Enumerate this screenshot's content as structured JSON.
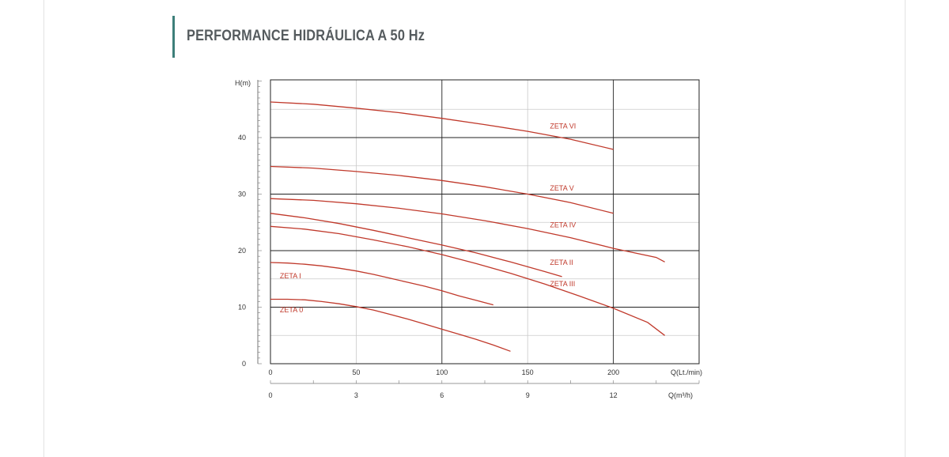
{
  "page": {
    "heading": "PERFORMANCE HIDRÁULICA A 50 Hz",
    "accent_color": "#3d7f7a"
  },
  "chart_data": {
    "type": "line",
    "title": "PERFORMANCE HIDRÁULICA A 50 Hz",
    "ylabel": "H(m)",
    "xlabel": "Q(Lt./min)",
    "x2label": "Q(m³/h)",
    "xlim": [
      0,
      250
    ],
    "ylim": [
      0,
      50
    ],
    "x_ticks": [
      0,
      50,
      100,
      150,
      200
    ],
    "x2_ticks": [
      0,
      3,
      6,
      9,
      12
    ],
    "y_ticks": [
      0,
      10,
      20,
      30,
      40
    ],
    "grid": true,
    "curve_color": "#c0392b",
    "series": [
      {
        "name": "ZETA 0",
        "x": [
          0,
          10,
          20,
          30,
          40,
          50,
          60,
          70,
          80,
          90,
          100,
          110,
          120,
          130,
          140
        ],
        "y": [
          11.4,
          11.4,
          11.3,
          11.0,
          10.6,
          10.1,
          9.5,
          8.7,
          7.9,
          7.0,
          6.1,
          5.2,
          4.3,
          3.3,
          2.2
        ]
      },
      {
        "name": "ZETA I",
        "x": [
          0,
          10,
          20,
          30,
          40,
          50,
          60,
          70,
          80,
          90,
          100,
          110,
          120,
          130
        ],
        "y": [
          17.9,
          17.8,
          17.6,
          17.3,
          16.9,
          16.4,
          15.8,
          15.1,
          14.4,
          13.7,
          12.9,
          12.0,
          11.2,
          10.4
        ]
      },
      {
        "name": "ZETA II",
        "x": [
          0,
          20,
          40,
          60,
          80,
          100,
          120,
          140,
          160,
          170
        ],
        "y": [
          26.6,
          25.8,
          24.8,
          23.6,
          22.3,
          21.0,
          19.6,
          18.0,
          16.3,
          15.4
        ]
      },
      {
        "name": "ZETA III",
        "x": [
          0,
          20,
          40,
          60,
          80,
          100,
          120,
          140,
          160,
          180,
          200,
          220,
          230
        ],
        "y": [
          24.3,
          23.8,
          23.0,
          21.9,
          20.7,
          19.3,
          17.7,
          16.0,
          14.1,
          12.0,
          9.8,
          7.3,
          5.0
        ]
      },
      {
        "name": "ZETA IV",
        "x": [
          0,
          25,
          50,
          75,
          100,
          125,
          150,
          175,
          200,
          225,
          230
        ],
        "y": [
          29.2,
          28.9,
          28.3,
          27.5,
          26.5,
          25.3,
          23.9,
          22.3,
          20.4,
          18.8,
          18.0
        ]
      },
      {
        "name": "ZETA V",
        "x": [
          0,
          25,
          50,
          75,
          100,
          125,
          150,
          175,
          200
        ],
        "y": [
          34.9,
          34.6,
          34.0,
          33.3,
          32.4,
          31.3,
          30.0,
          28.5,
          26.6
        ]
      },
      {
        "name": "ZETA VI",
        "x": [
          0,
          25,
          50,
          75,
          100,
          125,
          150,
          175,
          200
        ],
        "y": [
          46.3,
          45.9,
          45.2,
          44.4,
          43.4,
          42.3,
          41.1,
          39.7,
          37.9
        ]
      }
    ]
  }
}
